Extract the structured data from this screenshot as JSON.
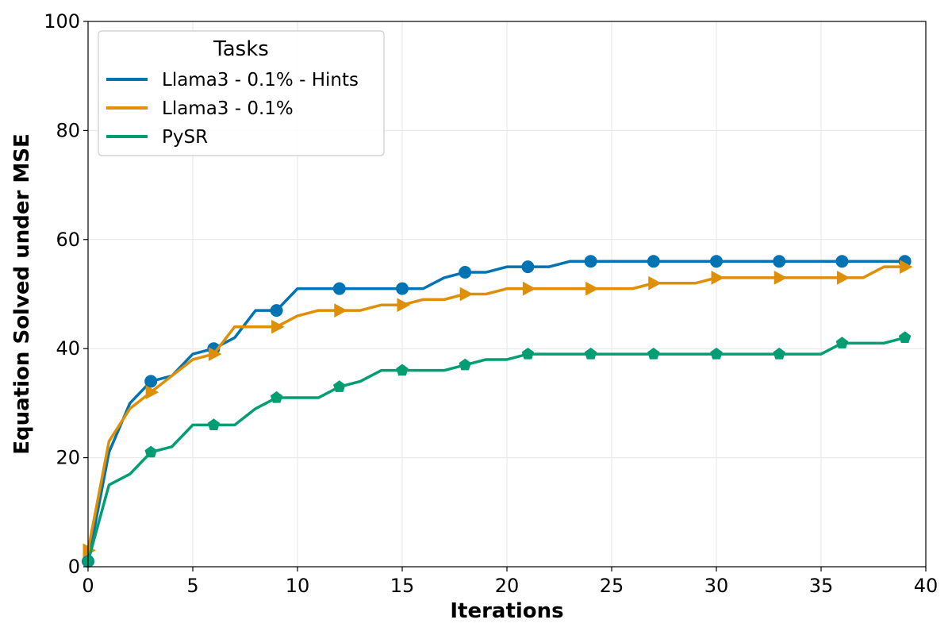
{
  "chart_data": {
    "type": "line",
    "xlabel": "Iterations",
    "ylabel": "Equation Solved under MSE",
    "xlim": [
      0,
      40
    ],
    "ylim": [
      0,
      100
    ],
    "xticks": [
      0,
      5,
      10,
      15,
      20,
      25,
      30,
      35,
      40
    ],
    "yticks": [
      0,
      20,
      40,
      60,
      80,
      100
    ],
    "grid": true,
    "legend": {
      "title": "Tasks",
      "position": "top-left"
    },
    "x": [
      0,
      1,
      2,
      3,
      4,
      5,
      6,
      7,
      8,
      9,
      10,
      11,
      12,
      13,
      14,
      15,
      16,
      17,
      18,
      19,
      20,
      21,
      22,
      23,
      24,
      25,
      26,
      27,
      28,
      29,
      30,
      31,
      32,
      33,
      34,
      35,
      36,
      37,
      38,
      39
    ],
    "marker_every": 3,
    "series": [
      {
        "name": "Llama3 - 0.1% - Hints",
        "color": "#0173b2",
        "marker": "circle",
        "values": [
          1,
          21,
          30,
          34,
          35,
          39,
          40,
          42,
          47,
          47,
          51,
          51,
          51,
          51,
          51,
          51,
          51,
          53,
          54,
          54,
          55,
          55,
          55,
          56,
          56,
          56,
          56,
          56,
          56,
          56,
          56,
          56,
          56,
          56,
          56,
          56,
          56,
          56,
          56,
          56
        ]
      },
      {
        "name": "Llama3 - 0.1%",
        "color": "#de8f05",
        "marker": "triangle-right",
        "values": [
          3,
          23,
          29,
          32,
          35,
          38,
          39,
          44,
          44,
          44,
          46,
          47,
          47,
          47,
          48,
          48,
          49,
          49,
          50,
          50,
          51,
          51,
          51,
          51,
          51,
          51,
          51,
          52,
          52,
          52,
          53,
          53,
          53,
          53,
          53,
          53,
          53,
          53,
          55,
          55
        ]
      },
      {
        "name": "PySR",
        "color": "#029e73",
        "marker": "pentagon",
        "values": [
          1,
          15,
          17,
          21,
          22,
          26,
          26,
          26,
          29,
          31,
          31,
          31,
          33,
          34,
          36,
          36,
          36,
          36,
          37,
          38,
          38,
          39,
          39,
          39,
          39,
          39,
          39,
          39,
          39,
          39,
          39,
          39,
          39,
          39,
          39,
          39,
          41,
          41,
          41,
          42
        ]
      }
    ]
  }
}
